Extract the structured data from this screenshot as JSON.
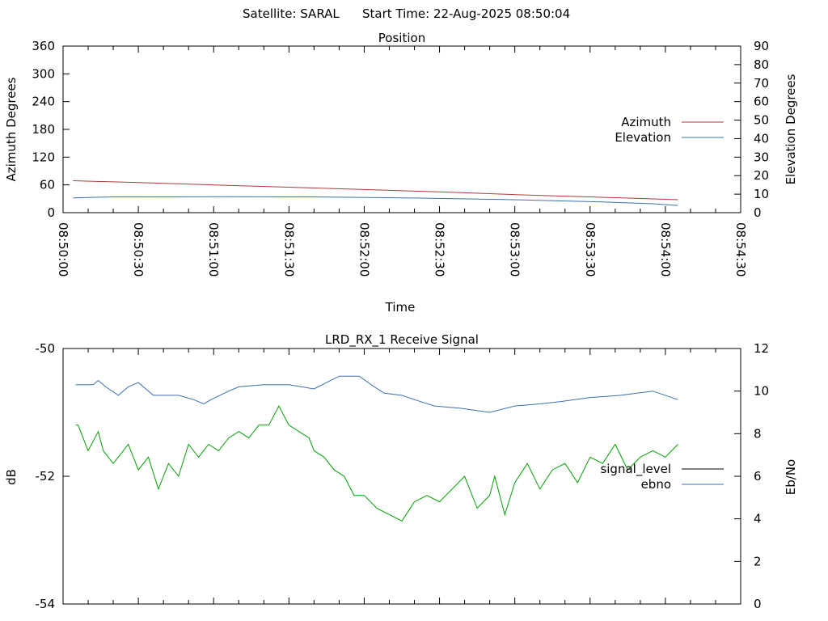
{
  "header": {
    "satellite": "Satellite: SARAL",
    "start_time": "Start Time: 22-Aug-2025 08:50:04"
  },
  "chart_data": [
    {
      "type": "line",
      "title": "Position",
      "xlabel": "Time",
      "ylabel": "Azimuth Degrees",
      "y2label": "Elevation Degrees",
      "ylim": [
        0,
        360
      ],
      "y2lim": [
        0,
        90
      ],
      "yticks": [
        "0",
        "60",
        "120",
        "180",
        "240",
        "300",
        "360"
      ],
      "y2ticks": [
        "0",
        "10",
        "20",
        "30",
        "40",
        "50",
        "60",
        "70",
        "80",
        "90"
      ],
      "xticks": [
        "08:50:00",
        "08:50:30",
        "08:51:00",
        "08:51:30",
        "08:52:00",
        "08:52:30",
        "08:53:00",
        "08:53:30",
        "08:54:00",
        "08:54:30"
      ],
      "xlim_seconds": [
        0,
        270
      ],
      "legend_position": "right",
      "series": [
        {
          "name": "Azimuth",
          "axis": "y",
          "color": "#b03a3a",
          "x": [
            4,
            30,
            60,
            90,
            120,
            150,
            180,
            210,
            245
          ],
          "y": [
            69,
            65,
            60,
            55,
            50,
            45,
            39,
            34,
            28
          ]
        },
        {
          "name": "Elevation",
          "axis": "y2",
          "color": "#3a6fb0",
          "x": [
            4,
            20,
            60,
            100,
            140,
            180,
            215,
            235,
            245
          ],
          "y": [
            8,
            8.5,
            8.6,
            8.5,
            7.9,
            7,
            5.8,
            4.8,
            3.9
          ]
        }
      ]
    },
    {
      "type": "line",
      "title": "LRD_RX_1 Receive Signal",
      "ylabel": "dB",
      "y2label": "Eb/No",
      "ylim": [
        -54,
        -50
      ],
      "y2lim": [
        0,
        12
      ],
      "yticks": [
        "-54",
        "-52",
        "-50"
      ],
      "y2ticks": [
        "0",
        "2",
        "4",
        "6",
        "8",
        "10",
        "12"
      ],
      "xlim_seconds": [
        0,
        270
      ],
      "legend_position": "right",
      "series": [
        {
          "name": "signal_level",
          "axis": "y",
          "color": "#000000",
          "x": [],
          "y": []
        },
        {
          "name": "ebno",
          "axis": "y2",
          "color": "#3a6fb0",
          "x": [
            5,
            12,
            14,
            17,
            22,
            26,
            30,
            36,
            46,
            52,
            56,
            59,
            66,
            70,
            80,
            90,
            100,
            110,
            118,
            124,
            128,
            135,
            140,
            148,
            158,
            170,
            180,
            190,
            198,
            210,
            222,
            235,
            245
          ],
          "y": [
            10.3,
            10.3,
            10.5,
            10.2,
            9.8,
            10.2,
            10.4,
            9.8,
            9.8,
            9.6,
            9.4,
            9.6,
            10.0,
            10.2,
            10.3,
            10.3,
            10.1,
            10.7,
            10.7,
            10.2,
            9.9,
            9.8,
            9.6,
            9.3,
            9.2,
            9.0,
            9.3,
            9.4,
            9.5,
            9.7,
            9.8,
            10.0,
            9.6
          ]
        },
        {
          "name": "",
          "axis": "y",
          "color": "#00a000",
          "x": [
            5,
            6,
            10,
            14,
            16,
            20,
            26,
            30,
            34,
            38,
            42,
            46,
            50,
            54,
            58,
            62,
            66,
            70,
            74,
            78,
            82,
            86,
            90,
            94,
            98,
            100,
            104,
            108,
            112,
            116,
            120,
            125,
            130,
            135,
            140,
            145,
            150,
            155,
            160,
            165,
            170,
            172,
            176,
            180,
            185,
            190,
            195,
            200,
            205,
            210,
            215,
            220,
            225,
            230,
            235,
            240,
            245
          ],
          "y": [
            -51.2,
            -51.2,
            -51.6,
            -51.3,
            -51.6,
            -51.8,
            -51.5,
            -51.9,
            -51.7,
            -52.2,
            -51.8,
            -52.0,
            -51.5,
            -51.7,
            -51.5,
            -51.6,
            -51.4,
            -51.3,
            -51.4,
            -51.2,
            -51.2,
            -50.9,
            -51.2,
            -51.3,
            -51.4,
            -51.6,
            -51.7,
            -51.9,
            -52.0,
            -52.3,
            -52.3,
            -52.5,
            -52.6,
            -52.7,
            -52.4,
            -52.3,
            -52.4,
            -52.2,
            -52.0,
            -52.5,
            -52.3,
            -52.0,
            -52.6,
            -52.1,
            -51.8,
            -52.2,
            -51.9,
            -51.8,
            -52.1,
            -51.7,
            -51.8,
            -51.5,
            -51.9,
            -51.7,
            -51.6,
            -51.7,
            -51.5
          ]
        }
      ]
    }
  ]
}
